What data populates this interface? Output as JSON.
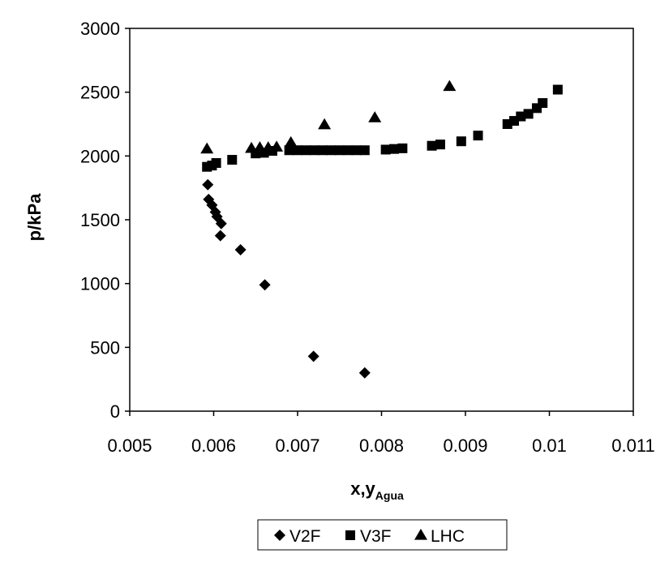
{
  "chart_data": {
    "type": "scatter",
    "title": "",
    "xlabel": {
      "main": "x,y",
      "subscript": "Agua"
    },
    "ylabel": "p/kPa",
    "xlim": [
      0.005,
      0.011
    ],
    "ylim": [
      0,
      3000
    ],
    "x_ticks": [
      0.005,
      0.006,
      0.007,
      0.008,
      0.009,
      0.01,
      0.011
    ],
    "x_tick_labels": [
      "0.005",
      "0.006",
      "0.007",
      "0.008",
      "0.009",
      "0.01",
      "0.011"
    ],
    "y_ticks": [
      0,
      500,
      1000,
      1500,
      2000,
      2500,
      3000
    ],
    "y_tick_labels": [
      "0",
      "500",
      "1000",
      "1500",
      "2000",
      "2500",
      "3000"
    ],
    "grid": false,
    "legend": "bottom",
    "series": [
      {
        "name": "V2F",
        "marker": "diamond",
        "color": "#000000",
        "points": [
          [
            0.00593,
            1775
          ],
          [
            0.00594,
            1660
          ],
          [
            0.00598,
            1615
          ],
          [
            0.00602,
            1560
          ],
          [
            0.00604,
            1525
          ],
          [
            0.00609,
            1470
          ],
          [
            0.00608,
            1375
          ],
          [
            0.00632,
            1265
          ],
          [
            0.00661,
            990
          ],
          [
            0.00719,
            430
          ],
          [
            0.0078,
            300
          ]
        ]
      },
      {
        "name": "V3F",
        "marker": "square",
        "color": "#000000",
        "points": [
          [
            0.00592,
            1915
          ],
          [
            0.00598,
            1925
          ],
          [
            0.00603,
            1945
          ],
          [
            0.00622,
            1970
          ],
          [
            0.0065,
            2020
          ],
          [
            0.0066,
            2025
          ],
          [
            0.0067,
            2040
          ],
          [
            0.0069,
            2045
          ],
          [
            0.007,
            2045
          ],
          [
            0.0071,
            2045
          ],
          [
            0.0072,
            2045
          ],
          [
            0.0073,
            2045
          ],
          [
            0.0074,
            2045
          ],
          [
            0.0075,
            2045
          ],
          [
            0.0076,
            2045
          ],
          [
            0.0077,
            2045
          ],
          [
            0.0078,
            2045
          ],
          [
            0.00805,
            2050
          ],
          [
            0.00815,
            2055
          ],
          [
            0.00825,
            2060
          ],
          [
            0.0086,
            2080
          ],
          [
            0.0087,
            2090
          ],
          [
            0.00895,
            2115
          ],
          [
            0.00915,
            2160
          ],
          [
            0.0095,
            2250
          ],
          [
            0.00958,
            2275
          ],
          [
            0.00966,
            2310
          ],
          [
            0.00975,
            2330
          ],
          [
            0.00985,
            2375
          ],
          [
            0.00992,
            2415
          ],
          [
            0.0101,
            2520
          ]
        ]
      },
      {
        "name": "LHC",
        "marker": "triangle",
        "color": "#000000",
        "points": [
          [
            0.00592,
            2055
          ],
          [
            0.00645,
            2060
          ],
          [
            0.00655,
            2065
          ],
          [
            0.00665,
            2065
          ],
          [
            0.00675,
            2070
          ],
          [
            0.00692,
            2105
          ],
          [
            0.00732,
            2245
          ],
          [
            0.00792,
            2300
          ],
          [
            0.00881,
            2545
          ]
        ]
      }
    ]
  }
}
